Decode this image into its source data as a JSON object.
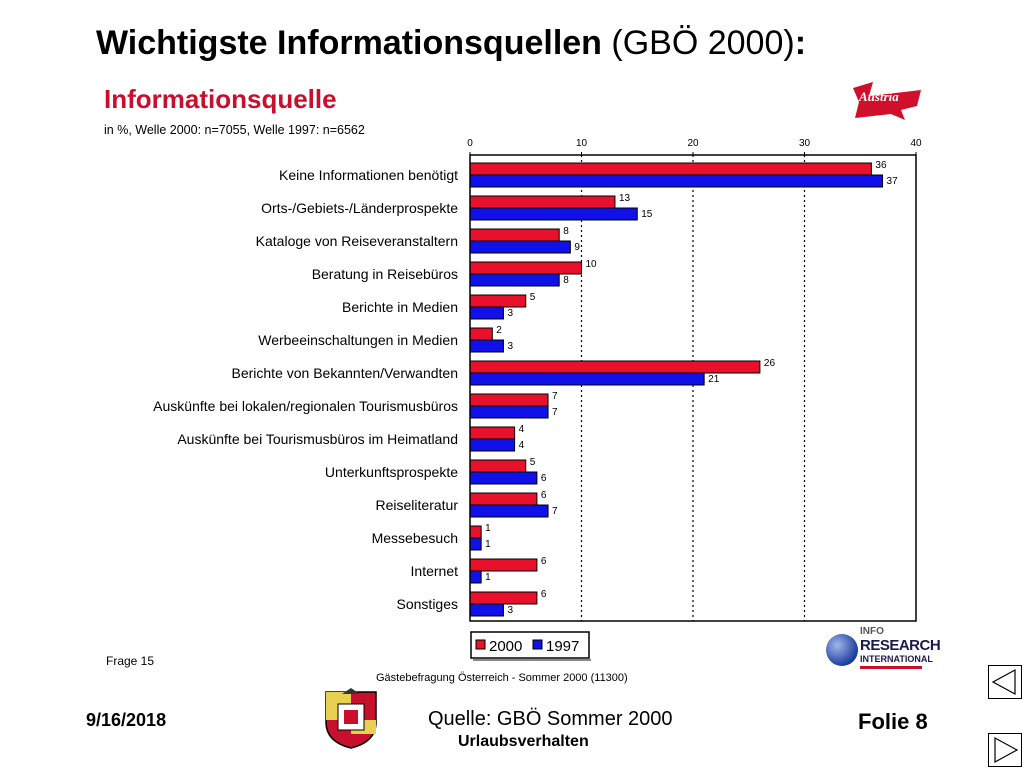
{
  "slide": {
    "title_bold": "Wichtigste Informationsquellen",
    "title_normal": " (GBÖ 2000)",
    "title_colon": ":"
  },
  "logos": {
    "austria_text": "Austria",
    "info_line1": "INFO",
    "info_line2": "RESEARCH",
    "info_line3": "INTERNATIONAL"
  },
  "frage": "Frage 15",
  "source_small": "Gästebefragung Österreich - Sommer 2000 (11300)",
  "footer": {
    "date": "9/16/2018",
    "source": "Quelle: GBÖ Sommer 2000",
    "subtitle": "Urlaubsverhalten",
    "folie": "Folie 8"
  },
  "chart_data": {
    "type": "bar",
    "orientation": "horizontal",
    "title": "Informationsquelle",
    "subtitle": "in %, Welle 2000: n=7055, Welle 1997: n=6562",
    "xlim": [
      0,
      40
    ],
    "xticks": [
      0,
      10,
      20,
      30,
      40
    ],
    "grid": "vertical dashed",
    "legend_position": "bottom",
    "categories": [
      "Keine Informationen benötigt",
      "Orts-/Gebiets-/Länderprospekte",
      "Kataloge von Reiseveranstaltern",
      "Beratung in Reisebüros",
      "Berichte in Medien",
      "Werbeeinschaltungen in Medien",
      "Berichte von Bekannten/Verwandten",
      "Auskünfte bei lokalen/regionalen Tourismusbüros",
      "Auskünfte bei Tourismusbüros im Heimatland",
      "Unterkunftsprospekte",
      "Reiseliteratur",
      "Messebesuch",
      "Internet",
      "Sonstiges"
    ],
    "series": [
      {
        "name": "2000",
        "color": "#e8102a",
        "values": [
          36,
          13,
          8,
          10,
          5,
          2,
          26,
          7,
          4,
          5,
          6,
          1,
          6,
          6
        ]
      },
      {
        "name": "1997",
        "color": "#1010e8",
        "values": [
          37,
          15,
          9,
          8,
          3,
          3,
          21,
          7,
          4,
          6,
          7,
          1,
          1,
          3
        ]
      }
    ]
  }
}
